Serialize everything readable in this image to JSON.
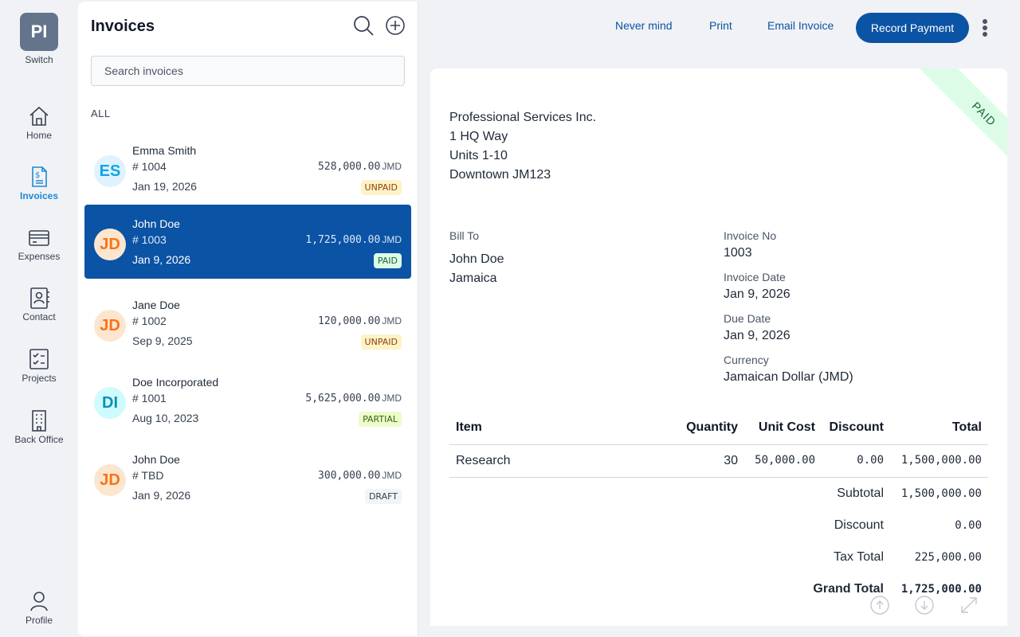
{
  "rail": {
    "switch_initials": "PI",
    "switch_label": "Switch",
    "items": [
      {
        "label": "Home"
      },
      {
        "label": "Invoices"
      },
      {
        "label": "Expenses"
      },
      {
        "label": "Contact"
      },
      {
        "label": "Projects"
      },
      {
        "label": "Back Office"
      },
      {
        "label": "Profile"
      }
    ]
  },
  "list": {
    "title": "Invoices",
    "search_placeholder": "Search invoices",
    "section": "ALL",
    "invoices": [
      {
        "initials": "ES",
        "name": "Emma Smith",
        "number": "# 1004",
        "date": "Jan 19, 2026",
        "amount": "528,000.00",
        "currency": "JMD",
        "status": "UNPAID",
        "avatar_bg": "#e0f2fe",
        "avatar_fg": "#0ea5e9",
        "badge_bg": "#fef3c7",
        "badge_fg": "#92400e"
      },
      {
        "initials": "JD",
        "name": "John Doe",
        "number": "# 1003",
        "date": "Jan 9, 2026",
        "amount": "1,725,000.00",
        "currency": "JMD",
        "status": "PAID",
        "avatar_bg": "#fde6cf",
        "avatar_fg": "#f97316",
        "badge_bg": "#dcfce7",
        "badge_fg": "#166534"
      },
      {
        "initials": "JD",
        "name": "Jane Doe",
        "number": "# 1002",
        "date": "Sep 9, 2025",
        "amount": "120,000.00",
        "currency": "JMD",
        "status": "UNPAID",
        "avatar_bg": "#fde6cf",
        "avatar_fg": "#f97316",
        "badge_bg": "#fef3c7",
        "badge_fg": "#92400e"
      },
      {
        "initials": "DI",
        "name": "Doe Incorporated",
        "number": "# 1001",
        "date": "Aug 10, 2023",
        "amount": "5,625,000.00",
        "currency": "JMD",
        "status": "PARTIAL",
        "avatar_bg": "#cffafe",
        "avatar_fg": "#0891b2",
        "badge_bg": "#ecfccb",
        "badge_fg": "#3f6212"
      },
      {
        "initials": "JD",
        "name": "John Doe",
        "number": "# TBD",
        "date": "Jan 9, 2026",
        "amount": "300,000.00",
        "currency": "JMD",
        "status": "DRAFT",
        "avatar_bg": "#fde6cf",
        "avatar_fg": "#f97316",
        "badge_bg": "#f3f4f6",
        "badge_fg": "#374151"
      }
    ]
  },
  "actions": {
    "never_mind": "Never mind",
    "print": "Print",
    "email": "Email Invoice",
    "record_payment": "Record Payment"
  },
  "invoice": {
    "ribbon": "PAID",
    "company_lines": [
      "Professional Services Inc.",
      "1 HQ Way",
      "Units 1-10",
      "Downtown JM123"
    ],
    "bill_to_label": "Bill To",
    "bill_to_name": "John Doe",
    "bill_to_country": "Jamaica",
    "invoice_no_label": "Invoice No",
    "invoice_no": "1003",
    "invoice_date_label": "Invoice Date",
    "invoice_date": "Jan 9, 2026",
    "due_date_label": "Due Date",
    "due_date": "Jan 9, 2026",
    "currency_label": "Currency",
    "currency": "Jamaican Dollar (JMD)",
    "table": {
      "headers": {
        "item": "Item",
        "quantity": "Quantity",
        "unit_cost": "Unit Cost",
        "discount": "Discount",
        "total": "Total"
      },
      "rows": [
        {
          "item": "Research",
          "quantity": "30",
          "unit_cost": "50,000.00",
          "discount": "0.00",
          "total": "1,500,000.00"
        }
      ]
    },
    "summary": {
      "subtotal_label": "Subtotal",
      "subtotal": "1,500,000.00",
      "discount_label": "Discount",
      "discount": "0.00",
      "tax_label": "Tax Total",
      "tax": "225,000.00",
      "grand_label": "Grand Total",
      "grand": "1,725,000.00"
    }
  },
  "colors": {
    "accent": "#0b53a4",
    "active_nav": "#1e88d8"
  }
}
